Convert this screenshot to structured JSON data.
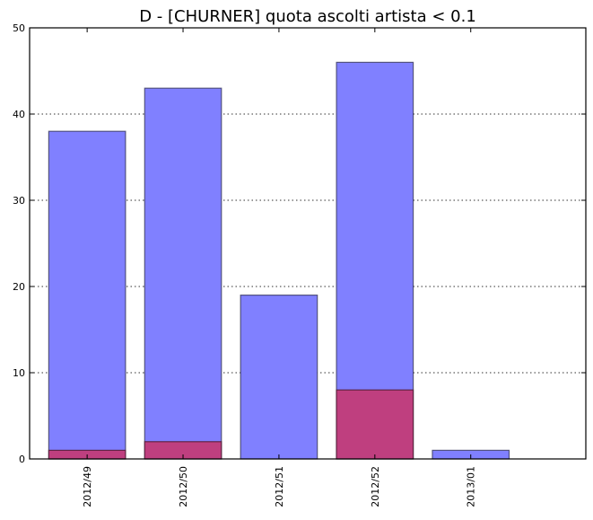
{
  "chart_data": {
    "type": "bar",
    "title": "D - [CHURNER] quota ascolti artista < 0.1",
    "categories": [
      "2012/49",
      "2012/50",
      "2012/51",
      "2012/52",
      "2013/01"
    ],
    "series": [
      {
        "values": [
          38,
          43,
          19,
          46,
          1
        ],
        "color": "#8080ff"
      },
      {
        "values": [
          1,
          2,
          0,
          8,
          0
        ],
        "color": "#bf3f7f"
      }
    ],
    "ylim": [
      0,
      50
    ],
    "yticks": [
      0,
      10,
      20,
      30,
      40,
      50
    ],
    "xlim": [
      -0.6,
      5.2
    ],
    "grid": "y-dotted",
    "xlabel": "",
    "ylabel": ""
  }
}
